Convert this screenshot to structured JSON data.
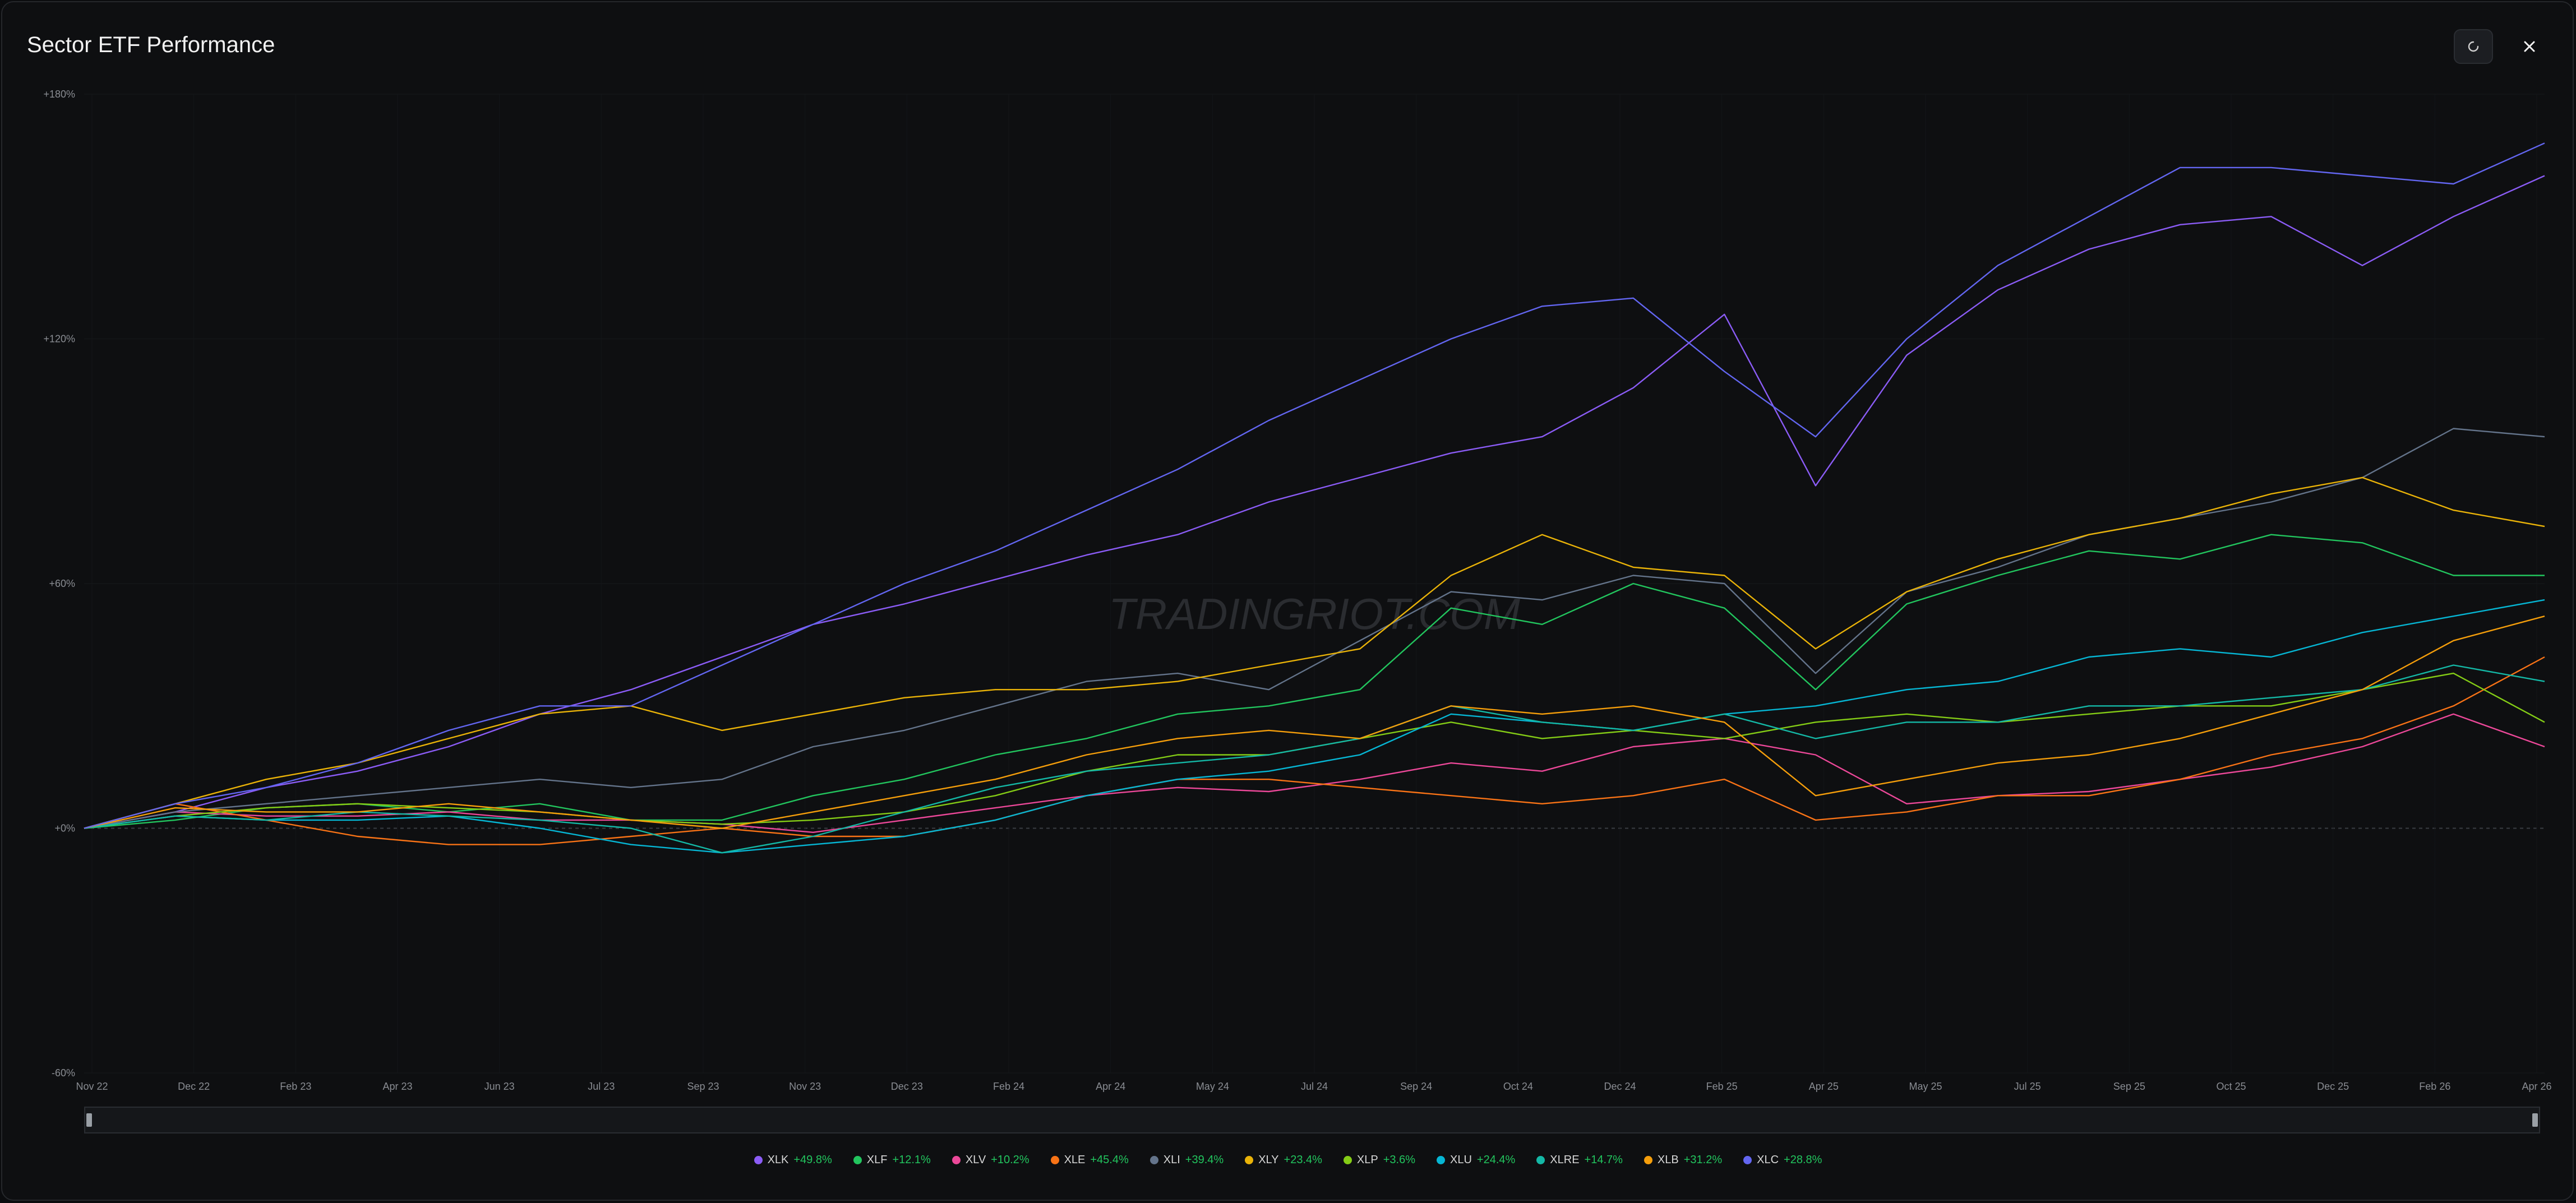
{
  "header": {
    "title": "Sector ETF Performance",
    "refresh_icon": "refresh-icon",
    "close_icon": "close-icon"
  },
  "watermark": "TRADINGRIOT.COM",
  "chart_data": {
    "type": "line",
    "title": "Sector ETF Performance",
    "xlabel": "",
    "ylabel": "",
    "ylim": [
      -60,
      180
    ],
    "y_ticks": [
      "+180%",
      "+120%",
      "+60%",
      "+0%",
      "-60%"
    ],
    "y_tick_values": [
      180,
      120,
      60,
      0,
      -60
    ],
    "x_ticks": [
      "Nov 22",
      "Dec 22",
      "Feb 23",
      "Apr 23",
      "Jun 23",
      "Jul 23",
      "Sep 23",
      "Nov 23",
      "Dec 23",
      "Feb 24",
      "Apr 24",
      "May 24",
      "Jul 24",
      "Sep 24",
      "Oct 24",
      "Dec 24",
      "Feb 25",
      "Apr 25",
      "May 25",
      "Jul 25",
      "Sep 25",
      "Oct 25",
      "Dec 25",
      "Feb 26",
      "Apr 26"
    ],
    "grid": true,
    "zero_line": true,
    "legend_position": "bottom",
    "series": [
      {
        "name": "XLK",
        "change": "+49.8%",
        "color": "#8b5cf6",
        "values": [
          0,
          4,
          10,
          14,
          20,
          28,
          34,
          42,
          50,
          55,
          61,
          67,
          72,
          80,
          86,
          92,
          96,
          108,
          126,
          84,
          116,
          132,
          142,
          148,
          150,
          138,
          150,
          160
        ]
      },
      {
        "name": "XLF",
        "change": "+12.1%",
        "color": "#22c55e",
        "values": [
          0,
          2,
          5,
          6,
          4,
          6,
          2,
          2,
          8,
          12,
          18,
          22,
          28,
          30,
          34,
          54,
          50,
          60,
          54,
          34,
          55,
          62,
          68,
          66,
          72,
          70,
          62,
          62
        ]
      },
      {
        "name": "XLV",
        "change": "+10.2%",
        "color": "#ec4899",
        "values": [
          0,
          4,
          3,
          3,
          4,
          2,
          2,
          1,
          -1,
          2,
          5,
          8,
          10,
          9,
          12,
          16,
          14,
          20,
          22,
          18,
          6,
          8,
          9,
          12,
          15,
          20,
          28,
          20
        ]
      },
      {
        "name": "XLE",
        "change": "+45.4%",
        "color": "#f97316",
        "values": [
          0,
          6,
          2,
          -2,
          -4,
          -4,
          -2,
          0,
          -2,
          -2,
          2,
          8,
          12,
          12,
          10,
          8,
          6,
          8,
          12,
          2,
          4,
          8,
          8,
          12,
          18,
          22,
          30,
          42
        ]
      },
      {
        "name": "XLI",
        "change": "+39.4%",
        "color": "#64748b",
        "values": [
          0,
          4,
          6,
          8,
          10,
          12,
          10,
          12,
          20,
          24,
          30,
          36,
          38,
          34,
          46,
          58,
          56,
          62,
          60,
          38,
          58,
          64,
          72,
          76,
          80,
          86,
          98,
          96
        ]
      },
      {
        "name": "XLY",
        "change": "+23.4%",
        "color": "#eab308",
        "values": [
          0,
          6,
          12,
          16,
          22,
          28,
          30,
          24,
          28,
          32,
          34,
          34,
          36,
          40,
          44,
          62,
          72,
          64,
          62,
          44,
          58,
          66,
          72,
          76,
          82,
          86,
          78,
          74
        ]
      },
      {
        "name": "XLP",
        "change": "+3.6%",
        "color": "#84cc16",
        "values": [
          0,
          3,
          5,
          6,
          5,
          4,
          2,
          1,
          2,
          4,
          8,
          14,
          18,
          18,
          22,
          26,
          22,
          24,
          22,
          26,
          28,
          26,
          28,
          30,
          30,
          34,
          38,
          26
        ]
      },
      {
        "name": "XLU",
        "change": "+24.4%",
        "color": "#06b6d4",
        "values": [
          0,
          3,
          2,
          2,
          3,
          0,
          -4,
          -6,
          -4,
          -2,
          2,
          8,
          12,
          14,
          18,
          28,
          26,
          24,
          28,
          30,
          34,
          36,
          42,
          44,
          42,
          48,
          52,
          56
        ]
      },
      {
        "name": "XLRE",
        "change": "+14.7%",
        "color": "#14b8a6",
        "values": [
          0,
          3,
          2,
          4,
          3,
          2,
          0,
          -6,
          -2,
          4,
          10,
          14,
          16,
          18,
          22,
          30,
          26,
          24,
          28,
          22,
          26,
          26,
          30,
          30,
          32,
          34,
          40,
          36
        ]
      },
      {
        "name": "XLB",
        "change": "+31.2%",
        "color": "#f59e0b",
        "values": [
          0,
          5,
          4,
          4,
          6,
          4,
          2,
          0,
          4,
          8,
          12,
          18,
          22,
          24,
          22,
          30,
          28,
          30,
          26,
          8,
          12,
          16,
          18,
          22,
          28,
          34,
          46,
          52
        ]
      },
      {
        "name": "XLC",
        "change": "+28.8%",
        "color": "#6366f1",
        "values": [
          0,
          6,
          10,
          16,
          24,
          30,
          30,
          40,
          50,
          60,
          68,
          78,
          88,
          100,
          110,
          120,
          128,
          130,
          112,
          96,
          120,
          138,
          150,
          162,
          162,
          160,
          158,
          168
        ]
      }
    ]
  }
}
